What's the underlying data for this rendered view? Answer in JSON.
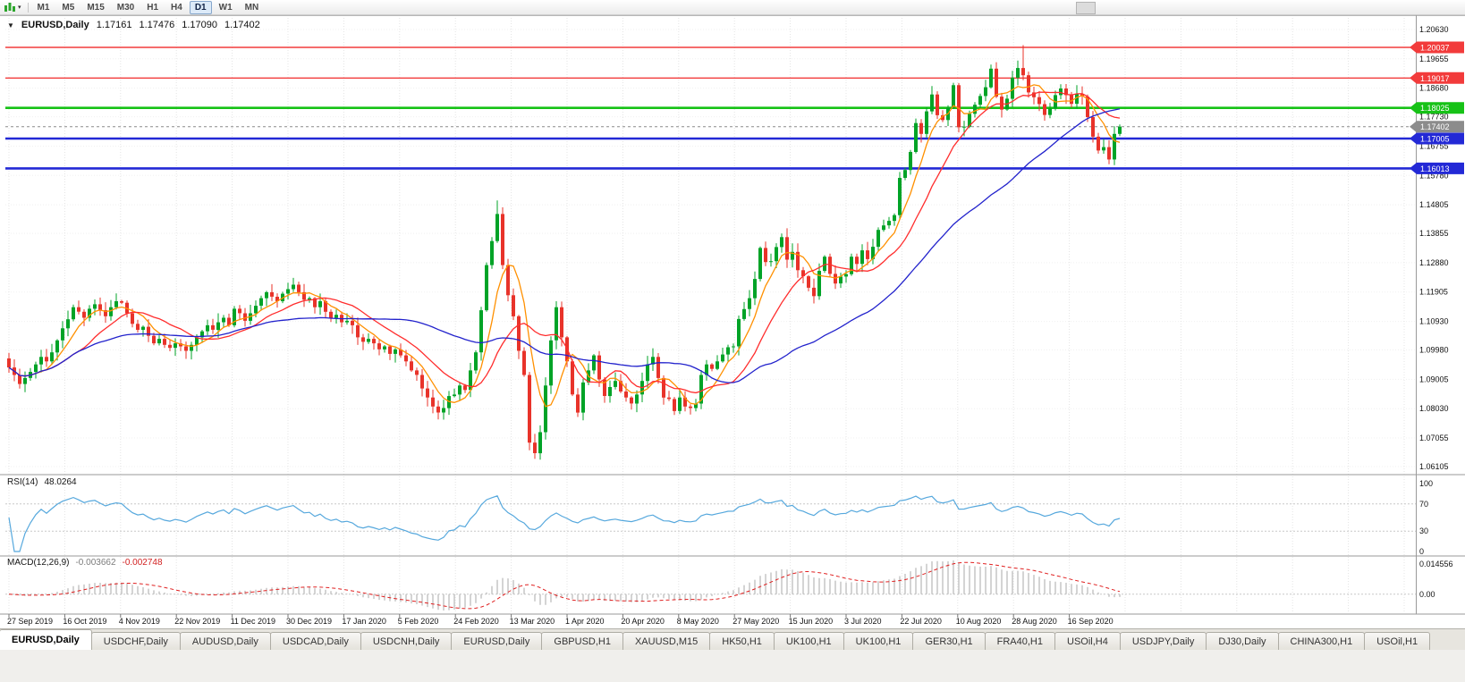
{
  "icons": {
    "dropdown": "▼",
    "dropdown_small": "▾"
  },
  "toolbar": {
    "timeframes": [
      "M1",
      "M5",
      "M15",
      "M30",
      "H1",
      "H4",
      "D1",
      "W1",
      "MN"
    ],
    "active_timeframe": "D1"
  },
  "symbol_info": {
    "symbol": "EURUSD,Daily",
    "open": "1.17161",
    "high": "1.17476",
    "low": "1.17090",
    "close": "1.17402"
  },
  "price_axis": {
    "labels": [
      "1.20630",
      "1.19655",
      "1.18680",
      "1.17730",
      "1.16755",
      "1.15780",
      "1.14805",
      "1.13855",
      "1.12880",
      "1.11905",
      "1.10930",
      "1.09980",
      "1.09005",
      "1.08030",
      "1.07055",
      "1.06105"
    ]
  },
  "badges": [
    {
      "text": "1.20037",
      "color": "#f23b3b"
    },
    {
      "text": "1.19017",
      "color": "#f23b3b"
    },
    {
      "text": "1.18025",
      "color": "#16c216"
    },
    {
      "text": "1.17402",
      "color": "#8c8c8c"
    },
    {
      "text": "1.17005",
      "color": "#2329d6"
    },
    {
      "text": "1.16013",
      "color": "#2329d6"
    }
  ],
  "hlines": [
    {
      "price": 1.20037,
      "color": "#f23b3b",
      "width": 1.4
    },
    {
      "price": 1.19017,
      "color": "#f23b3b",
      "width": 1.4
    },
    {
      "price": 1.18025,
      "color": "#16c216",
      "width": 2.6
    },
    {
      "price": 1.17005,
      "color": "#2329d6",
      "width": 2.6
    },
    {
      "price": 1.16013,
      "color": "#2329d6",
      "width": 2.6
    }
  ],
  "current_price": {
    "text": "1.17402",
    "price": 1.17402,
    "color": "#8c8c8c"
  },
  "x_axis": {
    "labels": [
      "27 Sep 2019",
      "16 Oct 2019",
      "4 Nov 2019",
      "22 Nov 2019",
      "11 Dec 2019",
      "30 Dec 2019",
      "17 Jan 2020",
      "5 Feb 2020",
      "24 Feb 2020",
      "13 Mar 2020",
      "1 Apr 2020",
      "20 Apr 2020",
      "8 May 2020",
      "27 May 2020",
      "15 Jun 2020",
      "3 Jul 2020",
      "22 Jul 2020",
      "10 Aug 2020",
      "28 Aug 2020",
      "16 Sep 2020"
    ]
  },
  "rsi": {
    "name": "RSI(14)",
    "value": "48.0264",
    "axis_labels": [
      "100",
      "70",
      "30",
      "0"
    ],
    "axis_values": [
      100,
      70,
      30,
      0
    ],
    "levels": [
      70,
      30
    ],
    "line_color": "#56a8dd"
  },
  "macd": {
    "name": "MACD(12,26,9)",
    "value_main": "-0.003662",
    "value_signal": "-0.002748",
    "axis_top_label": "0.014556",
    "axis_zero_label": "0.00",
    "histogram_color": "#a8a8a8",
    "signal_color": "#e02020"
  },
  "tabs": {
    "active_index": 0,
    "items": [
      "EURUSD,Daily",
      "USDCHF,Daily",
      "AUDUSD,Daily",
      "USDCAD,Daily",
      "USDCNH,Daily",
      "EURUSD,Daily",
      "GBPUSD,H1",
      "XAUUSD,M15",
      "HK50,H1",
      "UK100,H1",
      "UK100,H1",
      "GER30,H1",
      "FRA40,H1",
      "USOil,H4",
      "USDJPY,Daily",
      "DJ30,Daily",
      "CHINA300,H1",
      "USOil,H1"
    ]
  },
  "chart_data": {
    "type": "candlestick",
    "symbol": "EURUSD",
    "period": "Daily",
    "y_range": [
      1.06105,
      1.2063
    ],
    "bull_color": "#00a327",
    "bear_color": "#e8332a",
    "moving_averages": [
      {
        "period": 6,
        "color": "#ff9000"
      },
      {
        "period": 14,
        "color": "#ff2d2d"
      },
      {
        "period": 40,
        "color": "#2222cc"
      }
    ],
    "closes": [
      1.094,
      1.0915,
      1.0885,
      1.0905,
      1.0925,
      1.095,
      1.0975,
      1.096,
      1.099,
      1.103,
      1.107,
      1.11,
      1.114,
      1.1125,
      1.1105,
      1.1135,
      1.115,
      1.113,
      1.111,
      1.114,
      1.116,
      1.1155,
      1.112,
      1.1085,
      1.1065,
      1.1075,
      1.1045,
      1.102,
      1.1035,
      1.1015,
      1.1005,
      1.102,
      1.101,
      1.0995,
      1.1015,
      1.104,
      1.106,
      1.108,
      1.1065,
      1.109,
      1.1105,
      1.108,
      1.1135,
      1.112,
      1.1095,
      1.112,
      1.1145,
      1.117,
      1.119,
      1.1175,
      1.116,
      1.1185,
      1.12,
      1.1215,
      1.119,
      1.1165,
      1.117,
      1.114,
      1.116,
      1.1125,
      1.1105,
      1.1115,
      1.109,
      1.1095,
      1.108,
      1.104,
      1.1025,
      1.1035,
      1.102,
      1.1,
      1.101,
      1.0985,
      1.1,
      1.098,
      1.096,
      1.093,
      1.0915,
      1.087,
      1.084,
      1.081,
      1.079,
      1.0805,
      1.0845,
      1.085,
      1.088,
      1.0865,
      1.093,
      1.099,
      1.113,
      1.128,
      1.136,
      1.145,
      1.128,
      1.118,
      1.111,
      1.0995,
      1.0915,
      1.069,
      1.0655,
      1.0725,
      1.088,
      1.103,
      1.114,
      1.104,
      1.096,
      1.085,
      1.079,
      1.089,
      1.093,
      1.098,
      1.09,
      1.0845,
      1.0875,
      1.0895,
      1.086,
      1.084,
      1.082,
      1.085,
      1.0895,
      1.095,
      1.0975,
      1.0905,
      1.084,
      1.0835,
      1.0795,
      1.084,
      1.081,
      1.0805,
      1.082,
      1.0915,
      1.095,
      1.0935,
      1.096,
      1.0983,
      1.1007,
      1.101,
      1.1101,
      1.1134,
      1.117,
      1.1234,
      1.1337,
      1.129,
      1.1293,
      1.134,
      1.1373,
      1.1298,
      1.1324,
      1.1263,
      1.1243,
      1.1205,
      1.1177,
      1.1261,
      1.1308,
      1.1251,
      1.1219,
      1.1242,
      1.125,
      1.1308,
      1.1284,
      1.1329,
      1.13,
      1.1341,
      1.1397,
      1.1412,
      1.1427,
      1.1446,
      1.157,
      1.1596,
      1.1656,
      1.1752,
      1.1716,
      1.1791,
      1.1847,
      1.1778,
      1.1762,
      1.1803,
      1.1878,
      1.1738,
      1.174,
      1.1783,
      1.1813,
      1.1842,
      1.1871,
      1.1933,
      1.184,
      1.1797,
      1.1833,
      1.1903,
      1.1935,
      1.1911,
      1.1854,
      1.1838,
      1.1815,
      1.1779,
      1.1801,
      1.1845,
      1.1867,
      1.1845,
      1.1816,
      1.1849,
      1.184,
      1.1772,
      1.1707,
      1.1661,
      1.1672,
      1.1631,
      1.1716,
      1.174
    ],
    "wick_overrides": {
      "91": [
        1.1495,
        null
      ],
      "97": [
        null,
        1.0665
      ],
      "98": [
        null,
        1.0636
      ],
      "189": [
        1.2011,
        null
      ],
      "206": [
        null,
        1.1612
      ],
      "207": [
        1.17476,
        1.1709
      ]
    }
  }
}
